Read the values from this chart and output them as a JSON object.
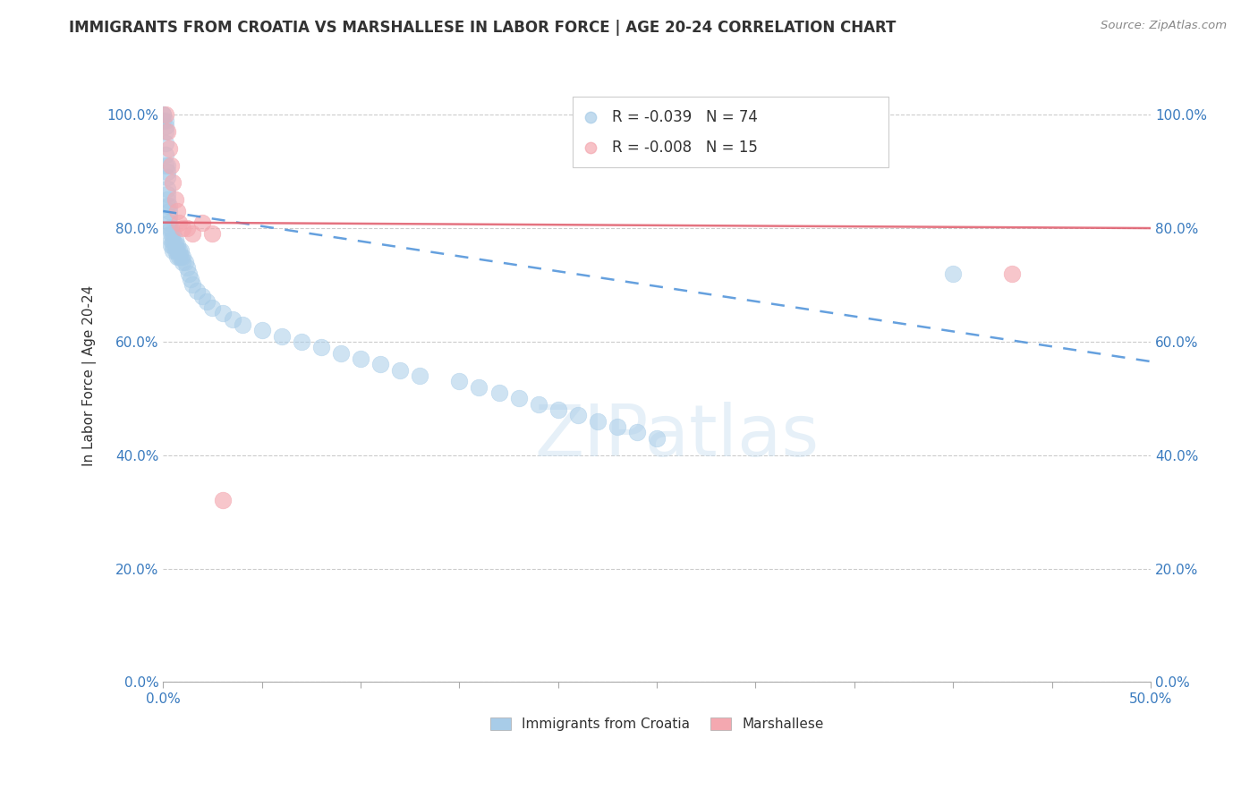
{
  "title": "IMMIGRANTS FROM CROATIA VS MARSHALLESE IN LABOR FORCE | AGE 20-24 CORRELATION CHART",
  "source": "Source: ZipAtlas.com",
  "ylabel": "In Labor Force | Age 20-24",
  "xlim": [
    0.0,
    0.5
  ],
  "ylim": [
    0.0,
    1.08
  ],
  "ytick_positions": [
    0.0,
    0.2,
    0.4,
    0.6,
    0.8,
    1.0
  ],
  "ytick_labels": [
    "0.0%",
    "20.0%",
    "40.0%",
    "60.0%",
    "80.0%",
    "100.0%"
  ],
  "xtick_positions": [
    0.0,
    0.05,
    0.1,
    0.15,
    0.2,
    0.25,
    0.3,
    0.35,
    0.4,
    0.45,
    0.5
  ],
  "xtick_labels": [
    "0.0%",
    "",
    "",
    "",
    "",
    "",
    "",
    "",
    "",
    "",
    "50.0%"
  ],
  "croatia_R": "-0.039",
  "croatia_N": "74",
  "marshallese_R": "-0.008",
  "marshallese_N": "15",
  "croatia_color": "#a8cce8",
  "marshallese_color": "#f4a8b0",
  "croatia_line_color": "#4a90d9",
  "marshallese_line_color": "#e05a6a",
  "croatia_x": [
    0.0,
    0.0,
    0.0,
    0.001,
    0.001,
    0.001,
    0.001,
    0.001,
    0.001,
    0.002,
    0.002,
    0.002,
    0.002,
    0.002,
    0.002,
    0.002,
    0.003,
    0.003,
    0.003,
    0.003,
    0.003,
    0.004,
    0.004,
    0.004,
    0.004,
    0.005,
    0.005,
    0.005,
    0.005,
    0.006,
    0.006,
    0.006,
    0.007,
    0.007,
    0.007,
    0.008,
    0.008,
    0.009,
    0.009,
    0.01,
    0.01,
    0.011,
    0.012,
    0.013,
    0.014,
    0.015,
    0.017,
    0.02,
    0.022,
    0.025,
    0.03,
    0.035,
    0.04,
    0.05,
    0.06,
    0.07,
    0.08,
    0.09,
    0.1,
    0.11,
    0.12,
    0.13,
    0.15,
    0.16,
    0.17,
    0.18,
    0.19,
    0.2,
    0.21,
    0.22,
    0.23,
    0.24,
    0.25,
    0.4
  ],
  "croatia_y": [
    1.0,
    1.0,
    0.99,
    0.99,
    0.98,
    0.97,
    0.95,
    0.93,
    0.91,
    0.91,
    0.9,
    0.89,
    0.87,
    0.86,
    0.85,
    0.84,
    0.84,
    0.83,
    0.82,
    0.81,
    0.8,
    0.8,
    0.79,
    0.78,
    0.77,
    0.79,
    0.78,
    0.77,
    0.76,
    0.78,
    0.77,
    0.76,
    0.77,
    0.76,
    0.75,
    0.76,
    0.75,
    0.76,
    0.75,
    0.75,
    0.74,
    0.74,
    0.73,
    0.72,
    0.71,
    0.7,
    0.69,
    0.68,
    0.67,
    0.66,
    0.65,
    0.64,
    0.63,
    0.62,
    0.61,
    0.6,
    0.59,
    0.58,
    0.57,
    0.56,
    0.55,
    0.54,
    0.53,
    0.52,
    0.51,
    0.5,
    0.49,
    0.48,
    0.47,
    0.46,
    0.45,
    0.44,
    0.43,
    0.72
  ],
  "marshallese_x": [
    0.001,
    0.002,
    0.003,
    0.004,
    0.005,
    0.006,
    0.007,
    0.008,
    0.01,
    0.012,
    0.015,
    0.02,
    0.025,
    0.03,
    0.43
  ],
  "marshallese_y": [
    1.0,
    0.97,
    0.94,
    0.91,
    0.88,
    0.85,
    0.83,
    0.81,
    0.8,
    0.8,
    0.79,
    0.81,
    0.79,
    0.32,
    0.72
  ],
  "croatia_trend_x0": 0.0,
  "croatia_trend_y0": 0.83,
  "croatia_trend_x1": 0.5,
  "croatia_trend_y1": 0.565,
  "marshallese_trend_x0": 0.0,
  "marshallese_trend_y0": 0.81,
  "marshallese_trend_x1": 0.5,
  "marshallese_trend_y1": 0.8,
  "watermark": "ZIPatlas",
  "background_color": "#ffffff",
  "grid_color": "#cccccc"
}
